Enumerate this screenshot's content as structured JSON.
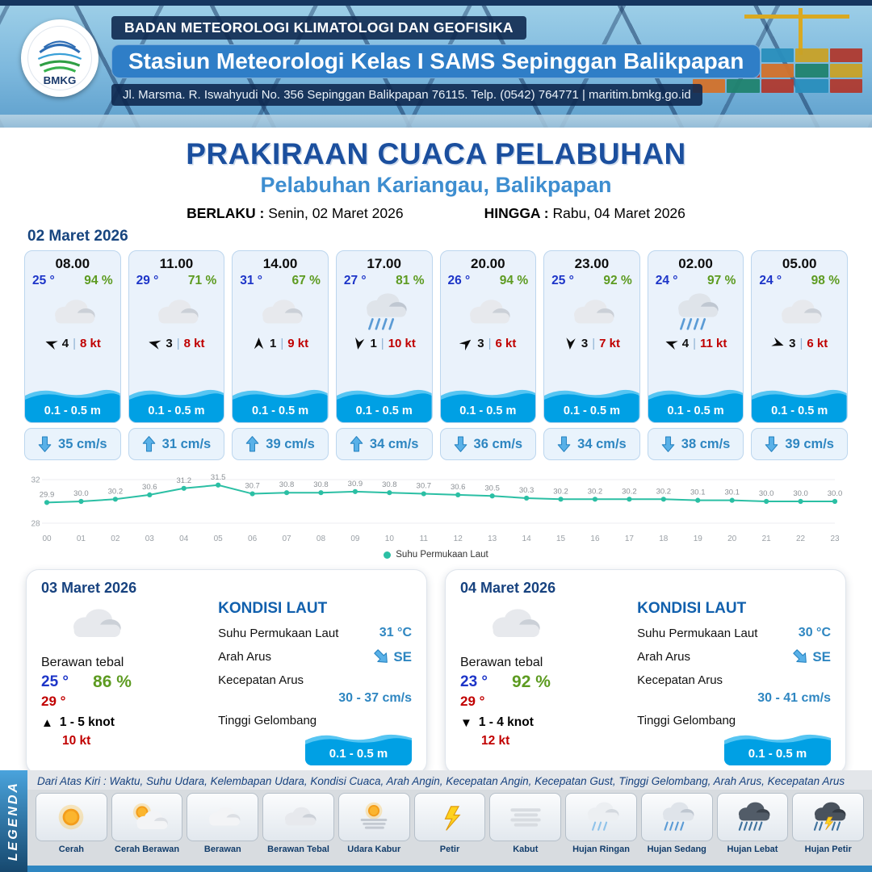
{
  "header": {
    "logo_text": "BMKG",
    "agency": "BADAN METEOROLOGI KLIMATOLOGI DAN GEOFISIKA",
    "station": "Stasiun Meteorologi Kelas I SAMS Sepinggan Balikpapan",
    "address": "Jl. Marsma. R. Iswahyudi No. 356 Sepinggan Balikpapan 76115. Telp. (0542) 764771 | maritim.bmkg.go.id"
  },
  "title": {
    "main": "PRAKIRAAN CUACA PELABUHAN",
    "sub": "Pelabuhan Kariangau, Balikpapan",
    "valid_label": "BERLAKU :",
    "valid_value": "Senin, 02 Maret 2026",
    "until_label": "HINGGA :",
    "until_value": "Rabu, 04 Maret 2026"
  },
  "forecast_date": "02 Maret 2026",
  "colors": {
    "temperature_blue": "#1d35c8",
    "humidity_green": "#5d9b21",
    "gust_red": "#c00000",
    "wave_blue": "#00a0e4",
    "accent_blue": "#2e86c1",
    "chart_line": "#2bbfa4"
  },
  "forecast_cards": [
    {
      "time": "08.00",
      "temp": "25 °",
      "humidity": "94 %",
      "icon": "berawan-tebal",
      "wind_dir_deg": 200,
      "wind_value": "4",
      "gust": "8 kt",
      "wave_height": "0.1 - 0.5 m",
      "current_arrow": "down",
      "current_speed": "35 cm/s"
    },
    {
      "time": "11.00",
      "temp": "29 °",
      "humidity": "71 %",
      "icon": "berawan-tebal",
      "wind_dir_deg": 195,
      "wind_value": "3",
      "gust": "8 kt",
      "wave_height": "0.1 - 0.5 m",
      "current_arrow": "up",
      "current_speed": "31 cm/s"
    },
    {
      "time": "14.00",
      "temp": "31 °",
      "humidity": "67 %",
      "icon": "berawan-tebal",
      "wind_dir_deg": 270,
      "wind_value": "1",
      "gust": "9 kt",
      "wave_height": "0.1 - 0.5 m",
      "current_arrow": "up",
      "current_speed": "39 cm/s"
    },
    {
      "time": "17.00",
      "temp": "27 °",
      "humidity": "81 %",
      "icon": "hujan-sedang",
      "wind_dir_deg": 100,
      "wind_value": "1",
      "gust": "10 kt",
      "wave_height": "0.1 - 0.5 m",
      "current_arrow": "up",
      "current_speed": "34 cm/s"
    },
    {
      "time": "20.00",
      "temp": "26 °",
      "humidity": "94 %",
      "icon": "berawan-tebal",
      "wind_dir_deg": 320,
      "wind_value": "3",
      "gust": "6 kt",
      "wave_height": "0.1 - 0.5 m",
      "current_arrow": "down",
      "current_speed": "36 cm/s"
    },
    {
      "time": "23.00",
      "temp": "25 °",
      "humidity": "92 %",
      "icon": "berawan-tebal",
      "wind_dir_deg": 95,
      "wind_value": "3",
      "gust": "7 kt",
      "wave_height": "0.1 - 0.5 m",
      "current_arrow": "down",
      "current_speed": "34 cm/s"
    },
    {
      "time": "02.00",
      "temp": "24 °",
      "humidity": "97 %",
      "icon": "hujan-sedang",
      "wind_dir_deg": 200,
      "wind_value": "4",
      "gust": "11 kt",
      "wave_height": "0.1 - 0.5 m",
      "current_arrow": "down",
      "current_speed": "38 cm/s"
    },
    {
      "time": "05.00",
      "temp": "24 °",
      "humidity": "98 %",
      "icon": "berawan-tebal",
      "wind_dir_deg": 20,
      "wind_value": "3",
      "gust": "6 kt",
      "wave_height": "0.1 - 0.5 m",
      "current_arrow": "down",
      "current_speed": "39 cm/s"
    }
  ],
  "chart_data": {
    "type": "line",
    "series_name": "Suhu Permukaan Laut",
    "x": [
      "00",
      "01",
      "02",
      "03",
      "04",
      "05",
      "06",
      "07",
      "08",
      "09",
      "10",
      "11",
      "12",
      "13",
      "14",
      "15",
      "16",
      "17",
      "18",
      "19",
      "20",
      "21",
      "22",
      "23"
    ],
    "values": [
      29.9,
      30.0,
      30.2,
      30.6,
      31.2,
      31.5,
      30.7,
      30.8,
      30.8,
      30.9,
      30.8,
      30.7,
      30.6,
      30.5,
      30.3,
      30.2,
      30.2,
      30.2,
      30.2,
      30.1,
      30.1,
      30.0,
      30.0,
      30.0
    ],
    "ylim": [
      28,
      32
    ],
    "yticks": [
      28,
      32
    ],
    "xlabel": "",
    "ylabel": "",
    "line_color": "#2bbfa4",
    "legend_position": "bottom-center",
    "grid": false
  },
  "daily": [
    {
      "date": "03 Maret 2026",
      "icon": "berawan-tebal",
      "condition": "Berawan tebal",
      "temp_min": "25 °",
      "temp_max": "29 °",
      "humidity": "86 %",
      "wind_arrow": "▲",
      "wind_range": "1  - 5 knot",
      "gust": "10 kt",
      "sea": {
        "heading": "KONDISI LAUT",
        "sst_label": "Suhu Permukaan Laut",
        "sst_value": "31 °C",
        "dir_label": "Arah Arus",
        "dir_value": "SE",
        "speed_label": "Kecepatan Arus",
        "speed_value": "30  - 37 cm/s",
        "wave_label": "Tinggi Gelombang",
        "wave_value": "0.1 - 0.5 m"
      }
    },
    {
      "date": "04 Maret 2026",
      "icon": "berawan-tebal",
      "condition": "Berawan tebal",
      "temp_min": "23 °",
      "temp_max": "29 °",
      "humidity": "92 %",
      "wind_arrow": "▼",
      "wind_range": "1  - 4 knot",
      "gust": "12 kt",
      "sea": {
        "heading": "KONDISI LAUT",
        "sst_label": "Suhu Permukaan Laut",
        "sst_value": "30 °C",
        "dir_label": "Arah Arus",
        "dir_value": "SE",
        "speed_label": "Kecepatan Arus",
        "speed_value": "30  - 41 cm/s",
        "wave_label": "Tinggi Gelombang",
        "wave_value": "0.1 - 0.5 m"
      }
    }
  ],
  "legend": {
    "title": "LEGENDA",
    "description": "Dari Atas Kiri : Waktu, Suhu Udara, Kelembapan Udara, Kondisi Cuaca, Arah Angin, Kecepatan Angin, Kecepatan Gust, Tinggi Gelombang, Arah Arus, Kecepatan Arus",
    "items": [
      {
        "label": "Cerah",
        "icon": "cerah"
      },
      {
        "label": "Cerah Berawan",
        "icon": "cerah-berawan"
      },
      {
        "label": "Berawan",
        "icon": "berawan"
      },
      {
        "label": "Berawan Tebal",
        "icon": "berawan-tebal"
      },
      {
        "label": "Udara Kabur",
        "icon": "udara-kabur"
      },
      {
        "label": "Petir",
        "icon": "petir"
      },
      {
        "label": "Kabut",
        "icon": "kabut"
      },
      {
        "label": "Hujan Ringan",
        "icon": "hujan-ringan"
      },
      {
        "label": "Hujan Sedang",
        "icon": "hujan-sedang"
      },
      {
        "label": "Hujan Lebat",
        "icon": "hujan-lebat"
      },
      {
        "label": "Hujan Petir",
        "icon": "hujan-petir"
      }
    ]
  }
}
